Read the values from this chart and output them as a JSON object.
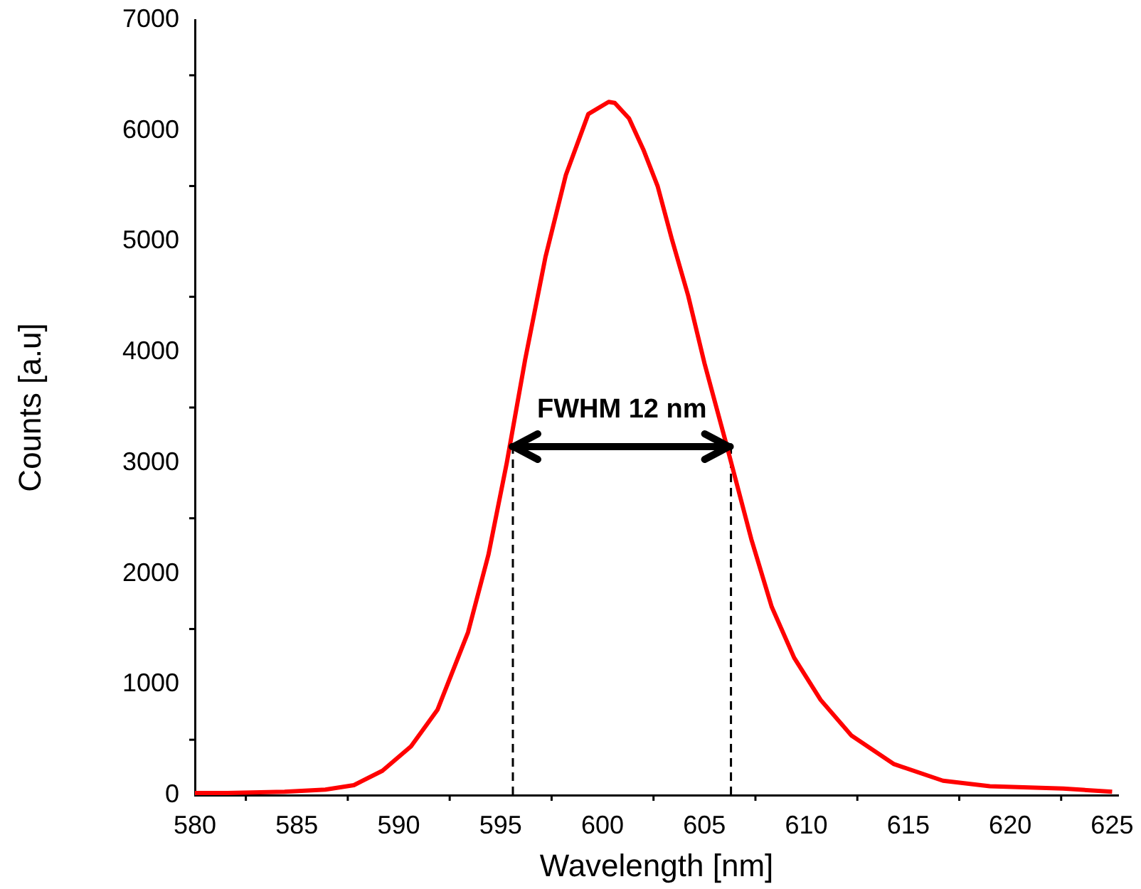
{
  "chart_data": {
    "type": "line",
    "xlabel": "Wavelength [nm]",
    "ylabel": "Counts [a.u]",
    "xlim": [
      580,
      625.3
    ],
    "ylim": [
      0,
      7000
    ],
    "xticks": [
      580,
      585,
      590,
      595,
      600,
      605,
      610,
      615,
      620,
      625
    ],
    "yticks": [
      0,
      1000,
      2000,
      3000,
      4000,
      5000,
      6000,
      7000
    ],
    "grid": false,
    "legend": false,
    "marker": "none",
    "annotations": [
      "FWHM 12 nm"
    ],
    "series": [
      {
        "color": "#ff0000",
        "line_style": "solid",
        "x": [
          580,
          581.6,
          584.4,
          586.4,
          587.8,
          589.2,
          590.6,
          591.9,
          593.4,
          594.4,
          595.3,
          596.2,
          597.2,
          598.2,
          599.3,
          600.3,
          600.6,
          601.3,
          602,
          602.7,
          603.4,
          604.2,
          605,
          606.1,
          607.3,
          608.3,
          609.4,
          610.7,
          612.2,
          614.3,
          616.7,
          619,
          622.6,
          625
        ],
        "values": [
          20,
          20,
          30,
          50,
          90,
          220,
          440,
          770,
          1470,
          2170,
          3000,
          3930,
          4860,
          5600,
          6150,
          6260,
          6250,
          6110,
          5830,
          5500,
          5020,
          4510,
          3900,
          3150,
          2310,
          1700,
          1240,
          860,
          540,
          280,
          130,
          80,
          60,
          30
        ]
      },
      {
        "type": "line",
        "color": "#000000",
        "line_style": "dashed",
        "x": [
          595.6,
          595.6
        ],
        "values": [
          0,
          3150
        ]
      },
      {
        "type": "line",
        "color": "#000000",
        "line_style": "dashed",
        "x": [
          606.3,
          606.3
        ],
        "values": [
          0,
          3150
        ]
      }
    ]
  }
}
